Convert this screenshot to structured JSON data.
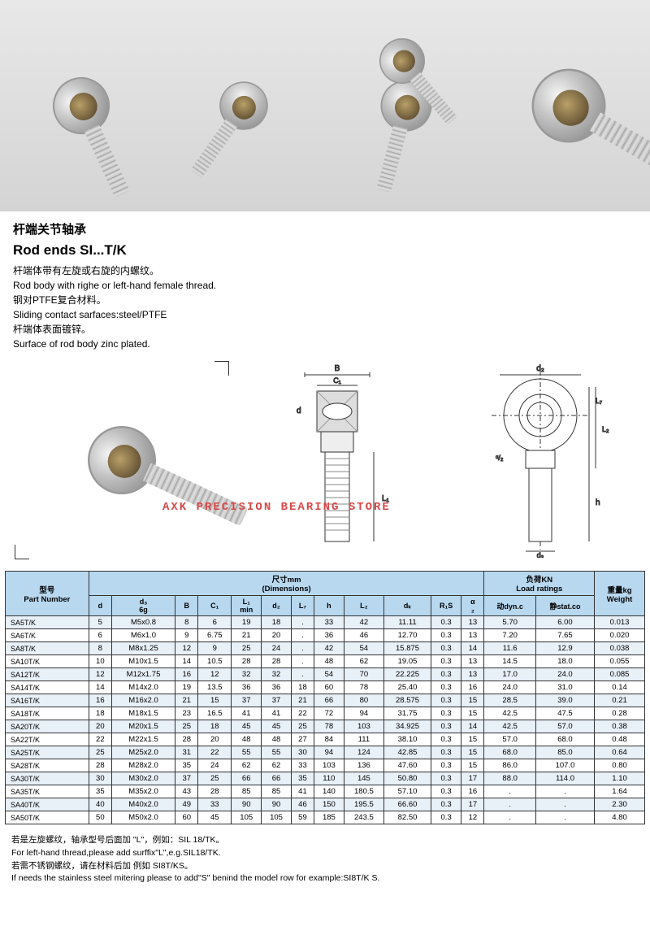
{
  "header": {
    "cn_title": "杆端关节轴承",
    "en_title": "Rod ends SI...T/K",
    "lines": [
      "杆端体带有左旋或右旋的内螺纹。",
      "Rod body with righe or left-hand female thread.",
      "钢对PTFE复合材料。",
      "Sliding contact sarfaces:steel/PTFE",
      "杆端体表面镀锌。",
      "Surface of rod body zinc plated."
    ]
  },
  "watermark": "AXK PRECISION BEARING STORE",
  "diagram_labels": {
    "B": "B",
    "C1": "C₁",
    "L1": "L₁",
    "d2": "d₂",
    "L7": "L₇",
    "L2": "L₂",
    "h": "h",
    "d3": "d₃",
    "a_2": "ᵅ/₂",
    "d": "d"
  },
  "table": {
    "group_headers": {
      "part_cn": "型号",
      "part_en": "Part Number",
      "dim_cn": "尺寸mm",
      "dim_en": "(Dimensions)",
      "load_cn": "负荷KN",
      "load_en": "Load ratings",
      "weight_cn": "重量kg",
      "weight_en": "Weight"
    },
    "columns": [
      "d",
      "d₃\n6g",
      "B",
      "C₁",
      "L₁\nmin",
      "d₂",
      "L₇",
      "h",
      "L₂",
      "dₖ",
      "R₁S",
      "α\n₂",
      "动dyn.c",
      "静stat.co"
    ],
    "rows": [
      [
        "SA5T/K",
        "5",
        "M5x0.8",
        "8",
        "6",
        "19",
        "18",
        ".",
        "33",
        "42",
        "11.11",
        "0.3",
        "13",
        "5.70",
        "6.00",
        "0.013"
      ],
      [
        "SA6T/K",
        "6",
        "M6x1.0",
        "9",
        "6.75",
        "21",
        "20",
        ".",
        "36",
        "46",
        "12.70",
        "0.3",
        "13",
        "7.20",
        "7.65",
        "0.020"
      ],
      [
        "SA8T/K",
        "8",
        "M8x1.25",
        "12",
        "9",
        "25",
        "24",
        ".",
        "42",
        "54",
        "15.875",
        "0.3",
        "14",
        "11.6",
        "12.9",
        "0.038"
      ],
      [
        "SA10T/K",
        "10",
        "M10x1.5",
        "14",
        "10.5",
        "28",
        "28",
        ".",
        "48",
        "62",
        "19.05",
        "0.3",
        "13",
        "14.5",
        "18.0",
        "0.055"
      ],
      [
        "SA12T/K",
        "12",
        "M12x1.75",
        "16",
        "12",
        "32",
        "32",
        ".",
        "54",
        "70",
        "22.225",
        "0.3",
        "13",
        "17.0",
        "24.0",
        "0.085"
      ],
      [
        "SA14T/K",
        "14",
        "M14x2.0",
        "19",
        "13.5",
        "36",
        "36",
        "18",
        "60",
        "78",
        "25.40",
        "0.3",
        "16",
        "24.0",
        "31.0",
        "0.14"
      ],
      [
        "SA16T/K",
        "16",
        "M16x2.0",
        "21",
        "15",
        "37",
        "37",
        "21",
        "66",
        "80",
        "28.575",
        "0.3",
        "15",
        "28.5",
        "39.0",
        "0.21"
      ],
      [
        "SA18T/K",
        "18",
        "M18x1.5",
        "23",
        "16.5",
        "41",
        "41",
        "22",
        "72",
        "94",
        "31.75",
        "0.3",
        "15",
        "42.5",
        "47.5",
        "0.28"
      ],
      [
        "SA20T/K",
        "20",
        "M20x1.5",
        "25",
        "18",
        "45",
        "45",
        "25",
        "78",
        "103",
        "34.925",
        "0.3",
        "14",
        "42.5",
        "57.0",
        "0.38"
      ],
      [
        "SA22T/K",
        "22",
        "M22x1.5",
        "28",
        "20",
        "48",
        "48",
        "27",
        "84",
        "111",
        "38.10",
        "0.3",
        "15",
        "57.0",
        "68.0",
        "0.48"
      ],
      [
        "SA25T/K",
        "25",
        "M25x2.0",
        "31",
        "22",
        "55",
        "55",
        "30",
        "94",
        "124",
        "42.85",
        "0.3",
        "15",
        "68.0",
        "85.0",
        "0.64"
      ],
      [
        "SA28T/K",
        "28",
        "M28x2.0",
        "35",
        "24",
        "62",
        "62",
        "33",
        "103",
        "136",
        "47.60",
        "0.3",
        "15",
        "86.0",
        "107.0",
        "0.80"
      ],
      [
        "SA30T/K",
        "30",
        "M30x2.0",
        "37",
        "25",
        "66",
        "66",
        "35",
        "110",
        "145",
        "50.80",
        "0.3",
        "17",
        "88.0",
        "114.0",
        "1.10"
      ],
      [
        "SA35T/K",
        "35",
        "M35x2.0",
        "43",
        "28",
        "85",
        "85",
        "41",
        "140",
        "180.5",
        "57.10",
        "0.3",
        "16",
        ".",
        ".",
        "1.64"
      ],
      [
        "SA40T/K",
        "40",
        "M40x2.0",
        "49",
        "33",
        "90",
        "90",
        "46",
        "150",
        "195.5",
        "66.60",
        "0.3",
        "17",
        ".",
        ".",
        "2.30"
      ],
      [
        "SA50T/K",
        "50",
        "M50x2.0",
        "60",
        "45",
        "105",
        "105",
        "59",
        "185",
        "243.5",
        "82.50",
        "0.3",
        "12",
        ".",
        ".",
        "4.80"
      ]
    ]
  },
  "footnotes": [
    "若是左旋螺纹，轴承型号后面加 \"L\"，例如：SIL 18/TK。",
    "For left-hand thread,please add surffix\"L\",e.g.SIL18/TK.",
    "若需不锈钢螺纹，请在材料后加 例如 SI8T/KS。",
    "If needs the stainless steel mitering please to add\"S\" benind the model row for example:SI8T/K S."
  ],
  "style": {
    "header_bg": "#b8d8f0",
    "row_odd_bg": "#e8f0f8",
    "row_even_bg": "#ffffff",
    "border_color": "#333333",
    "watermark_color": "#d84848",
    "font_size_table": 9.5,
    "font_size_desc": 12
  }
}
